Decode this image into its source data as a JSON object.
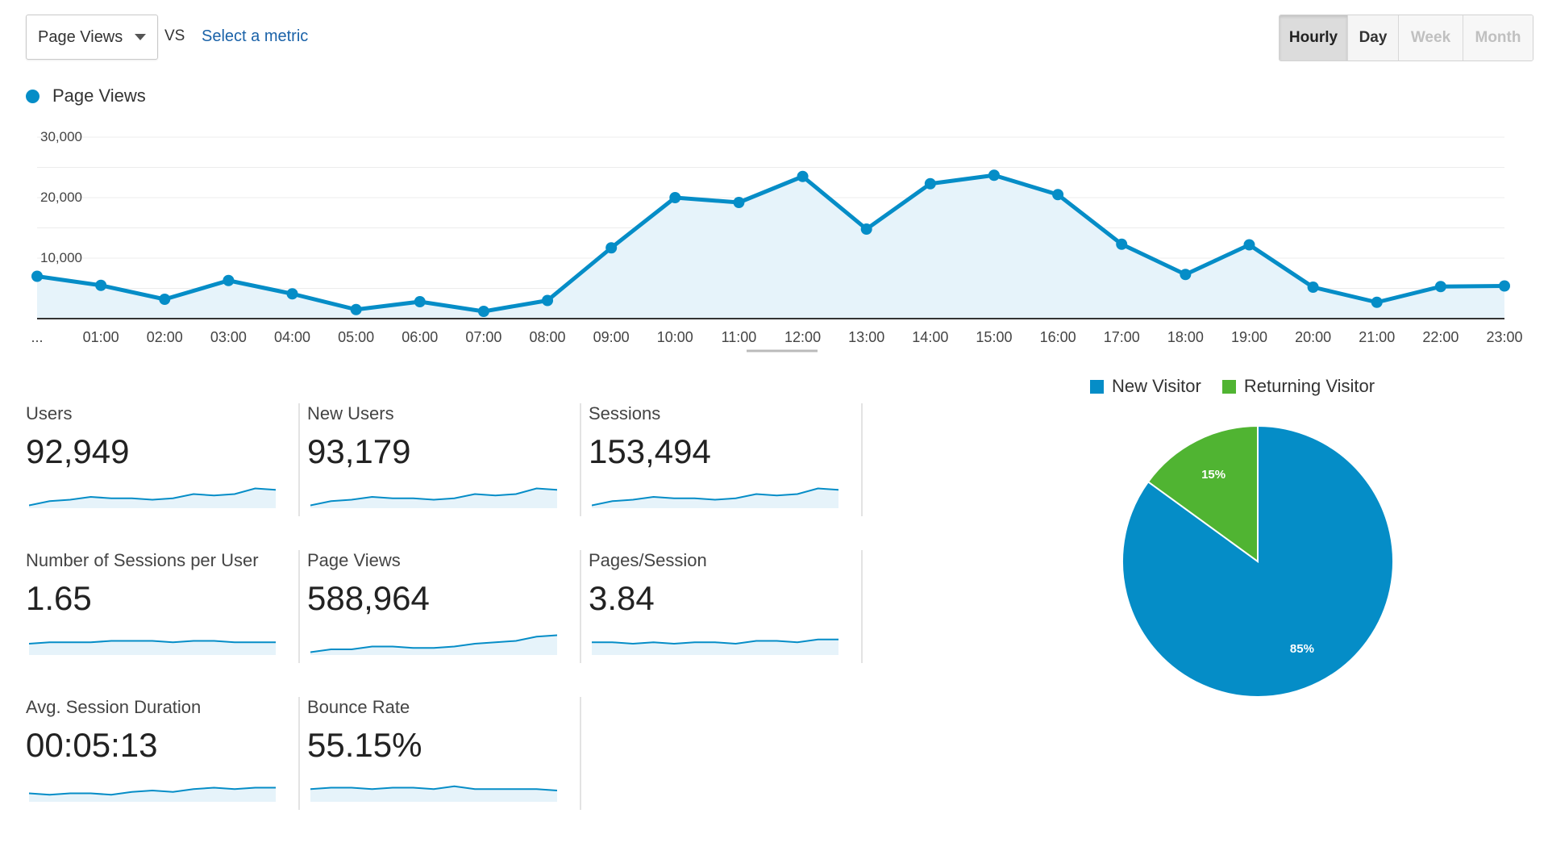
{
  "toolbar": {
    "metric_select": "Page Views",
    "vs_label": "VS",
    "select_metric_link": "Select a metric",
    "time_buttons": [
      "Hourly",
      "Day",
      "Week",
      "Month"
    ],
    "active_button": "Hourly"
  },
  "main_legend": {
    "label": "Page Views",
    "color": "#058dc7"
  },
  "chart_data": [
    {
      "type": "area",
      "series": [
        {
          "name": "Page Views",
          "color": "#058dc7",
          "values": [
            7000,
            5500,
            3200,
            6300,
            4100,
            1500,
            2800,
            1200,
            3000,
            11700,
            20000,
            19200,
            23500,
            14800,
            22300,
            23700,
            20500,
            12300,
            7300,
            12200,
            5200,
            2700,
            5300,
            5400
          ]
        }
      ],
      "x_tick_labels": [
        "...",
        "01:00",
        "02:00",
        "03:00",
        "04:00",
        "05:00",
        "06:00",
        "07:00",
        "08:00",
        "09:00",
        "10:00",
        "11:00",
        "12:00",
        "13:00",
        "14:00",
        "15:00",
        "16:00",
        "17:00",
        "18:00",
        "19:00",
        "20:00",
        "21:00",
        "22:00",
        "23:00"
      ],
      "y_tick_labels": [
        "30,000",
        "20,000",
        "10,000"
      ],
      "ylim": [
        0,
        30000
      ],
      "grid": true,
      "legend": "top-left"
    },
    {
      "type": "pie",
      "categories": [
        "New Visitor",
        "Returning Visitor"
      ],
      "values": [
        85,
        15
      ],
      "value_labels": [
        "85%",
        "15%"
      ],
      "colors": [
        "#058dc7",
        "#50b432"
      ],
      "legend": "top"
    }
  ],
  "metrics": [
    {
      "label": "Users",
      "value": "92,949",
      "spark": [
        2,
        5,
        6,
        8,
        7,
        7,
        6,
        7,
        10,
        9,
        10,
        14,
        13
      ]
    },
    {
      "label": "New Users",
      "value": "93,179",
      "spark": [
        2,
        5,
        6,
        8,
        7,
        7,
        6,
        7,
        10,
        9,
        10,
        14,
        13
      ]
    },
    {
      "label": "Sessions",
      "value": "153,494",
      "spark": [
        2,
        5,
        6,
        8,
        7,
        7,
        6,
        7,
        10,
        9,
        10,
        14,
        13
      ]
    },
    {
      "label": "Number of Sessions per User",
      "value": "1.65",
      "spark": [
        8,
        9,
        9,
        9,
        10,
        10,
        10,
        9,
        10,
        10,
        9,
        9,
        9
      ]
    },
    {
      "label": "Page Views",
      "value": "588,964",
      "spark": [
        2,
        4,
        4,
        6,
        6,
        5,
        5,
        6,
        8,
        9,
        10,
        13,
        14
      ]
    },
    {
      "label": "Pages/Session",
      "value": "3.84",
      "spark": [
        9,
        9,
        8,
        9,
        8,
        9,
        9,
        8,
        10,
        10,
        9,
        11,
        11
      ]
    },
    {
      "label": "Avg. Session Duration",
      "value": "00:05:13",
      "spark": [
        6,
        5,
        6,
        6,
        5,
        7,
        8,
        7,
        9,
        10,
        9,
        10,
        10
      ]
    },
    {
      "label": "Bounce Rate",
      "value": "55.15%",
      "spark": [
        9,
        10,
        10,
        9,
        10,
        10,
        9,
        11,
        9,
        9,
        9,
        9,
        8
      ]
    }
  ]
}
